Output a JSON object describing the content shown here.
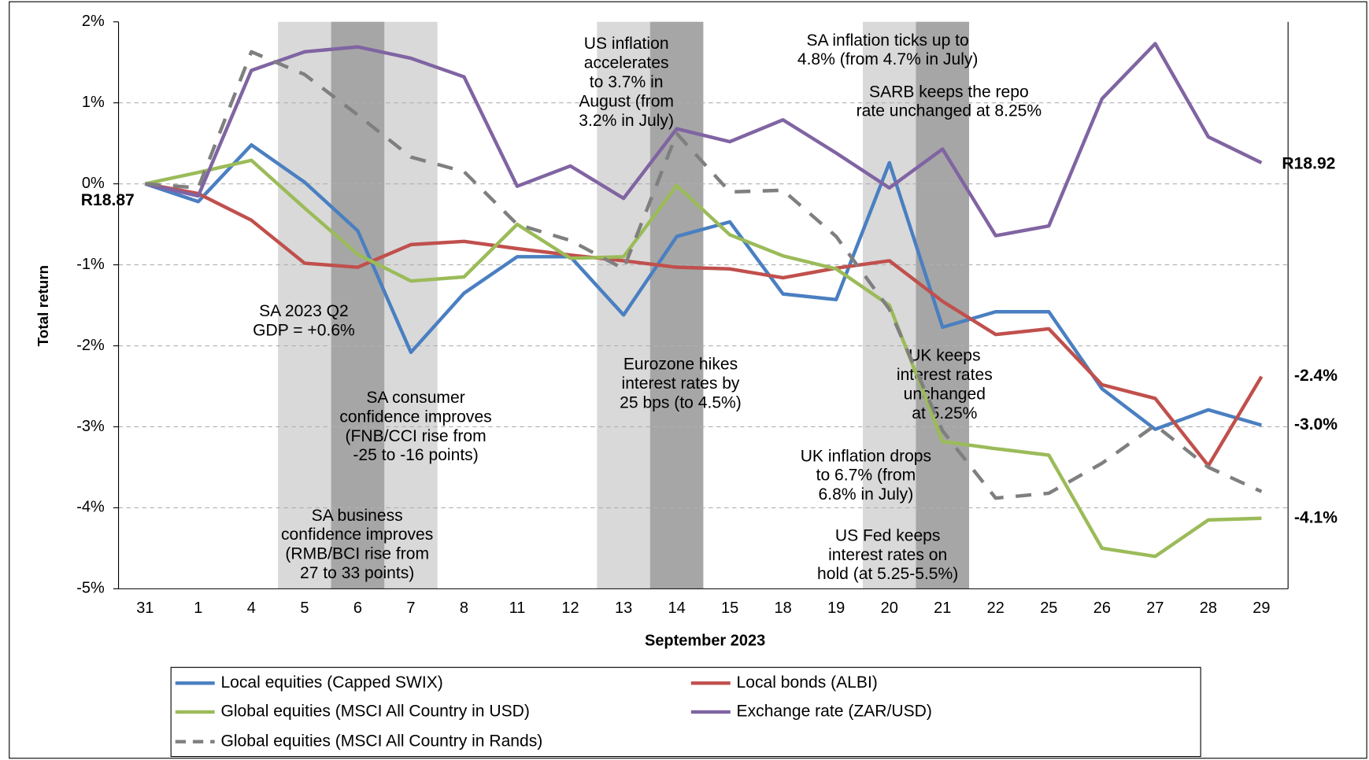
{
  "chart_data": {
    "type": "line",
    "xlabel": "September 2023",
    "ylabel": "Total return",
    "categories": [
      "31",
      "1",
      "4",
      "5",
      "6",
      "7",
      "8",
      "11",
      "12",
      "13",
      "14",
      "15",
      "18",
      "19",
      "20",
      "21",
      "22",
      "25",
      "26",
      "27",
      "28",
      "29"
    ],
    "ylim": [
      -5,
      2
    ],
    "yticks": [
      {
        "value": -5,
        "label": "-5%"
      },
      {
        "value": -4,
        "label": "-4%"
      },
      {
        "value": -3,
        "label": "-3%"
      },
      {
        "value": -2,
        "label": "-2%"
      },
      {
        "value": -1,
        "label": "-1%"
      },
      {
        "value": 0,
        "label": "0%"
      },
      {
        "value": 1,
        "label": "1%"
      },
      {
        "value": 2,
        "label": "2%"
      }
    ],
    "grid": true,
    "series": [
      {
        "name": "Local equities (Capped SWIX)",
        "color": "#4a7fc1",
        "style": "solid",
        "values": [
          0,
          -0.22,
          0.48,
          0.02,
          -0.58,
          -2.08,
          -1.35,
          -0.9,
          -0.9,
          -1.62,
          -0.65,
          -0.47,
          -1.36,
          -1.43,
          0.26,
          -1.77,
          -1.58,
          -1.58,
          -2.53,
          -3.03,
          -2.79,
          -2.98
        ],
        "value_labels": [
          null,
          null,
          null,
          null,
          null,
          null,
          null,
          null,
          null,
          null,
          null,
          null,
          null,
          null,
          null,
          null,
          null,
          null,
          null,
          null,
          null,
          "-3.0%"
        ]
      },
      {
        "name": "Local bonds (ALBI)",
        "color": "#c0504d",
        "style": "solid",
        "values": [
          0,
          -0.12,
          -0.45,
          -0.98,
          -1.03,
          -0.75,
          -0.71,
          -0.8,
          -0.88,
          -0.95,
          -1.03,
          -1.05,
          -1.16,
          -1.04,
          -0.95,
          -1.45,
          -1.86,
          -1.79,
          -2.48,
          -2.65,
          -3.48,
          -2.38
        ],
        "value_labels": [
          null,
          null,
          null,
          null,
          null,
          null,
          null,
          null,
          null,
          null,
          null,
          null,
          null,
          null,
          null,
          null,
          null,
          null,
          null,
          null,
          null,
          "-2.4%"
        ]
      },
      {
        "name": "Global equities (MSCI All Country in USD)",
        "color": "#9bbb59",
        "style": "solid",
        "values": [
          0,
          0.14,
          0.29,
          -0.3,
          -0.87,
          -1.2,
          -1.15,
          -0.5,
          -0.92,
          -0.9,
          -0.02,
          -0.63,
          -0.89,
          -1.05,
          -1.5,
          -3.18,
          -3.27,
          -3.35,
          -4.5,
          -4.6,
          -4.15,
          -4.13
        ],
        "value_labels": [
          null,
          null,
          null,
          null,
          null,
          null,
          null,
          null,
          null,
          null,
          null,
          null,
          null,
          null,
          null,
          null,
          null,
          null,
          null,
          null,
          null,
          "-4.1%"
        ]
      },
      {
        "name": "Exchange rate (ZAR/USD)",
        "color": "#8064a2",
        "style": "solid",
        "values": [
          0,
          -0.15,
          1.4,
          1.63,
          1.69,
          1.55,
          1.32,
          -0.03,
          0.22,
          -0.18,
          0.68,
          0.52,
          0.79,
          0.38,
          -0.05,
          0.43,
          -0.64,
          -0.52,
          1.05,
          1.73,
          0.58,
          0.26
        ]
      },
      {
        "name": "Global equities (MSCI All Country in Rands)",
        "color": "#7f7f7f",
        "style": "dashed",
        "values": [
          0,
          -0.05,
          1.63,
          1.35,
          0.85,
          0.33,
          0.15,
          -0.5,
          -0.7,
          -1.05,
          0.62,
          -0.1,
          -0.08,
          -0.65,
          -1.55,
          -3.05,
          -3.88,
          -3.82,
          -3.45,
          -2.98,
          -3.5,
          -3.8
        ]
      }
    ],
    "annotations": [
      [
        "US inflation",
        "accelerates",
        "to 3.7% in",
        "August (from",
        "3.2% in July)"
      ],
      [
        "SA inflation ticks up to",
        "4.8% (from 4.7% in July)"
      ],
      [
        "SARB keeps the repo",
        "rate unchanged at 8.25%"
      ],
      [
        "SA 2023 Q2",
        "GDP = +0.6%"
      ],
      [
        "SA consumer",
        "confidence improves",
        "(FNB/CCI rise from",
        "-25 to -16 points)"
      ],
      [
        "Eurozone hikes",
        "interest rates by",
        "25 bps (to 4.5%)"
      ],
      [
        "UK keeps",
        "interest rates",
        "unchanged",
        "at 5.25%"
      ],
      [
        "UK inflation drops",
        "to 6.7% (from",
        "6.8% in July)"
      ],
      [
        "SA business",
        "confidence improves",
        "(RMB/BCI rise from",
        "27 to 33 points)"
      ],
      [
        "US Fed keeps",
        "interest rates on",
        "hold (at 5.25-5.5%)"
      ],
      [
        "R18.87"
      ],
      [
        "R18.92"
      ]
    ]
  }
}
